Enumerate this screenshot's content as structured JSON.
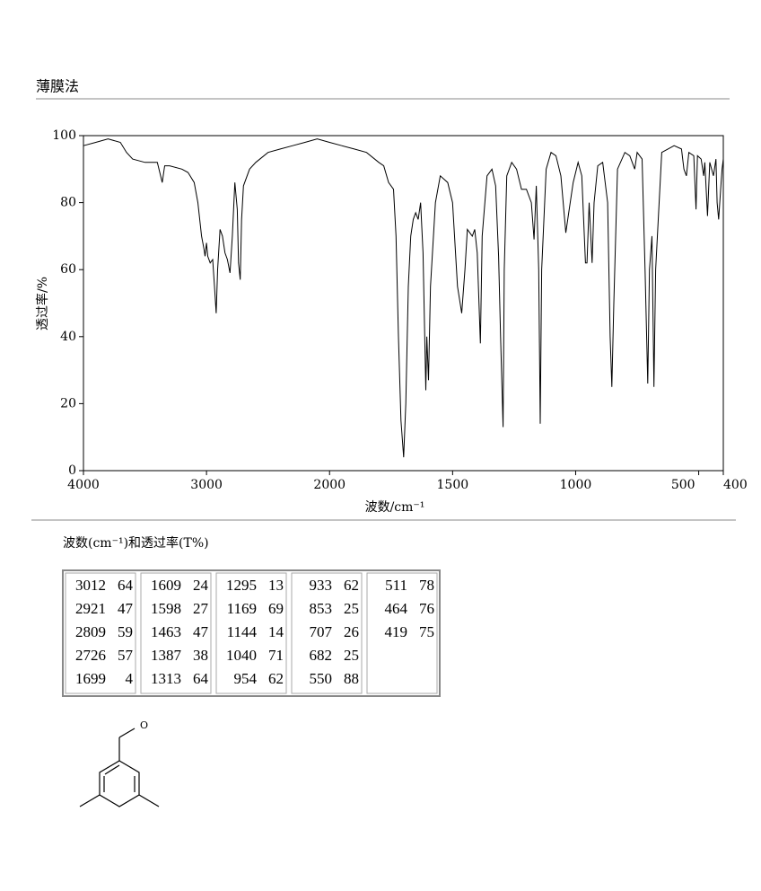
{
  "header": {
    "title": "薄膜法"
  },
  "chart_data": {
    "type": "line",
    "xlabel": "波数/cm⁻¹",
    "ylabel": "透过率/%",
    "xlim": [
      4000,
      400
    ],
    "xticks": [
      4000,
      3000,
      2000,
      1500,
      1000,
      500,
      400
    ],
    "x_scale_break": 2000,
    "ylim": [
      0,
      100
    ],
    "yticks": [
      0,
      20,
      40,
      60,
      80,
      100
    ],
    "color": "#000000",
    "x": [
      4000,
      3900,
      3800,
      3700,
      3650,
      3600,
      3500,
      3400,
      3360,
      3340,
      3300,
      3200,
      3150,
      3100,
      3070,
      3040,
      3020,
      3012,
      3000,
      2990,
      2970,
      2950,
      2935,
      2921,
      2910,
      2890,
      2870,
      2850,
      2830,
      2809,
      2790,
      2770,
      2750,
      2740,
      2726,
      2715,
      2700,
      2650,
      2600,
      2500,
      2400,
      2300,
      2200,
      2100,
      2000,
      1950,
      1900,
      1850,
      1800,
      1780,
      1760,
      1740,
      1730,
      1720,
      1710,
      1699,
      1690,
      1680,
      1670,
      1660,
      1650,
      1640,
      1630,
      1620,
      1609,
      1605,
      1598,
      1590,
      1570,
      1550,
      1520,
      1500,
      1480,
      1463,
      1450,
      1440,
      1420,
      1410,
      1400,
      1387,
      1380,
      1360,
      1340,
      1325,
      1313,
      1305,
      1295,
      1290,
      1280,
      1260,
      1240,
      1220,
      1200,
      1180,
      1169,
      1160,
      1150,
      1144,
      1138,
      1120,
      1100,
      1080,
      1060,
      1040,
      1030,
      1010,
      990,
      975,
      960,
      954,
      945,
      933,
      925,
      910,
      890,
      870,
      860,
      853,
      845,
      830,
      800,
      780,
      760,
      750,
      730,
      718,
      707,
      700,
      690,
      682,
      675,
      650,
      600,
      570,
      560,
      550,
      540,
      520,
      511,
      505,
      490,
      480,
      475,
      464,
      455,
      440,
      430,
      425,
      419,
      410,
      405,
      400
    ],
    "values": [
      97,
      98,
      99,
      98,
      95,
      93,
      92,
      92,
      86,
      91,
      91,
      90,
      89,
      86,
      80,
      70,
      66,
      64,
      68,
      64,
      62,
      63,
      55,
      47,
      60,
      72,
      70,
      65,
      63,
      59,
      70,
      86,
      78,
      62,
      57,
      75,
      85,
      90,
      92,
      95,
      96,
      97,
      98,
      99,
      98,
      97,
      96,
      95,
      92,
      91,
      86,
      84,
      70,
      40,
      15,
      4,
      20,
      55,
      70,
      75,
      77,
      75,
      80,
      65,
      24,
      40,
      27,
      55,
      80,
      88,
      86,
      80,
      55,
      47,
      60,
      72,
      70,
      72,
      65,
      38,
      70,
      88,
      90,
      85,
      64,
      40,
      13,
      60,
      88,
      92,
      90,
      84,
      84,
      80,
      69,
      85,
      60,
      14,
      60,
      90,
      95,
      94,
      88,
      71,
      76,
      86,
      92,
      88,
      62,
      62,
      80,
      62,
      80,
      91,
      92,
      80,
      40,
      25,
      50,
      90,
      95,
      94,
      90,
      95,
      93,
      60,
      26,
      60,
      70,
      25,
      60,
      95,
      97,
      96,
      90,
      88,
      95,
      94,
      78,
      94,
      93,
      88,
      92,
      76,
      92,
      88,
      93,
      80,
      75,
      85,
      90,
      93
    ]
  },
  "peaks": {
    "title": "波数(cm⁻¹)和透过率(T%)",
    "columns": [
      [
        [
          3012,
          64
        ],
        [
          2921,
          47
        ],
        [
          2809,
          59
        ],
        [
          2726,
          57
        ],
        [
          1699,
          4
        ]
      ],
      [
        [
          1609,
          24
        ],
        [
          1598,
          27
        ],
        [
          1463,
          47
        ],
        [
          1387,
          38
        ],
        [
          1313,
          64
        ]
      ],
      [
        [
          1295,
          13
        ],
        [
          1169,
          69
        ],
        [
          1144,
          14
        ],
        [
          1040,
          71
        ],
        [
          954,
          62
        ]
      ],
      [
        [
          933,
          62
        ],
        [
          853,
          25
        ],
        [
          707,
          26
        ],
        [
          682,
          25
        ],
        [
          550,
          88
        ]
      ],
      [
        [
          511,
          78
        ],
        [
          464,
          76
        ],
        [
          419,
          75
        ]
      ]
    ]
  },
  "structure": {
    "atom_label": "O"
  }
}
